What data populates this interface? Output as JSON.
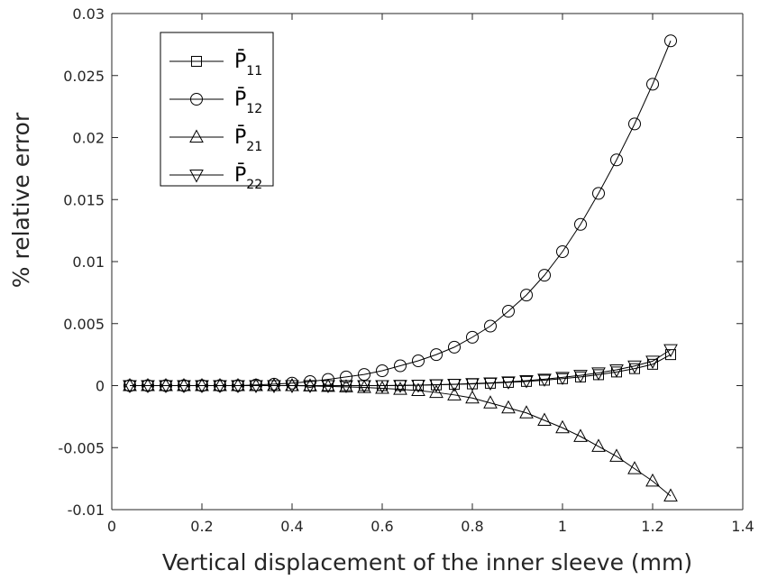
{
  "chart_data": {
    "type": "line",
    "title": "",
    "xlabel": "Vertical displacement of the inner sleeve (mm)",
    "ylabel": "% relative error",
    "xlim": [
      0,
      1.4
    ],
    "ylim": [
      -0.01,
      0.03
    ],
    "xticks": [
      0,
      0.2,
      0.4,
      0.6,
      0.8,
      1,
      1.2,
      1.4
    ],
    "xtick_labels": [
      "0",
      "0.2",
      "0.4",
      "0.6",
      "0.8",
      "1",
      "1.2",
      "1.4"
    ],
    "yticks": [
      -0.01,
      -0.005,
      0,
      0.005,
      0.01,
      0.015,
      0.02,
      0.025,
      0.03
    ],
    "ytick_labels": [
      "-0.01",
      "-0.005",
      "0",
      "0.005",
      "0.01",
      "0.015",
      "0.02",
      "0.025",
      "0.03"
    ],
    "grid": false,
    "legend_position": "top-left",
    "x": [
      0.04,
      0.08,
      0.12,
      0.16,
      0.2,
      0.24,
      0.28,
      0.32,
      0.36,
      0.4,
      0.44,
      0.48,
      0.52,
      0.56,
      0.6,
      0.64,
      0.68,
      0.72,
      0.76,
      0.8,
      0.84,
      0.88,
      0.92,
      0.96,
      1.0,
      1.04,
      1.08,
      1.12,
      1.16,
      1.2,
      1.24
    ],
    "series": [
      {
        "name_main": "P̄",
        "name_sub": "11",
        "marker": "square",
        "values": [
          0,
          0,
          0,
          0,
          0,
          0,
          0,
          0,
          0,
          0,
          0,
          0,
          0,
          0,
          0,
          1e-05,
          3e-05,
          6e-05,
          0.0001,
          0.00014,
          0.00019,
          0.00026,
          0.00034,
          0.00044,
          0.00056,
          0.0007,
          0.00088,
          0.0011,
          0.00137,
          0.00172,
          0.0025
        ]
      },
      {
        "name_main": "P̄",
        "name_sub": "12",
        "marker": "circle",
        "values": [
          0,
          0,
          0,
          0,
          0,
          0,
          0,
          5e-05,
          0.00012,
          0.0002,
          0.00033,
          0.0005,
          0.0007,
          0.0009,
          0.0012,
          0.0016,
          0.002,
          0.0025,
          0.0031,
          0.0039,
          0.0048,
          0.006,
          0.0073,
          0.0089,
          0.0108,
          0.013,
          0.0155,
          0.0182,
          0.0211,
          0.0243,
          0.0278
        ]
      },
      {
        "name_main": "P̄",
        "name_sub": "21",
        "marker": "triangle-up",
        "values": [
          0,
          0,
          0,
          0,
          0,
          0,
          0,
          0,
          0,
          0,
          -3e-05,
          -6e-05,
          -0.0001,
          -0.00015,
          -0.00022,
          -0.0003,
          -0.0004,
          -0.00055,
          -0.00075,
          -0.001,
          -0.0014,
          -0.0018,
          -0.0022,
          -0.0028,
          -0.0034,
          -0.0041,
          -0.0049,
          -0.0057,
          -0.0067,
          -0.0077,
          -0.0089
        ]
      },
      {
        "name_main": "P̄",
        "name_sub": "22",
        "marker": "triangle-down",
        "values": [
          0,
          0,
          0,
          0,
          0,
          0,
          0,
          0,
          0,
          0,
          0,
          0,
          0,
          0,
          0,
          2e-05,
          4e-05,
          7e-05,
          0.00011,
          0.00016,
          0.00022,
          0.0003,
          0.0004,
          0.00052,
          0.00066,
          0.00083,
          0.00103,
          0.00127,
          0.00158,
          0.00197,
          0.0029
        ]
      }
    ]
  },
  "colors": {
    "line": "#000000",
    "axis": "#262626",
    "background": "#ffffff"
  }
}
